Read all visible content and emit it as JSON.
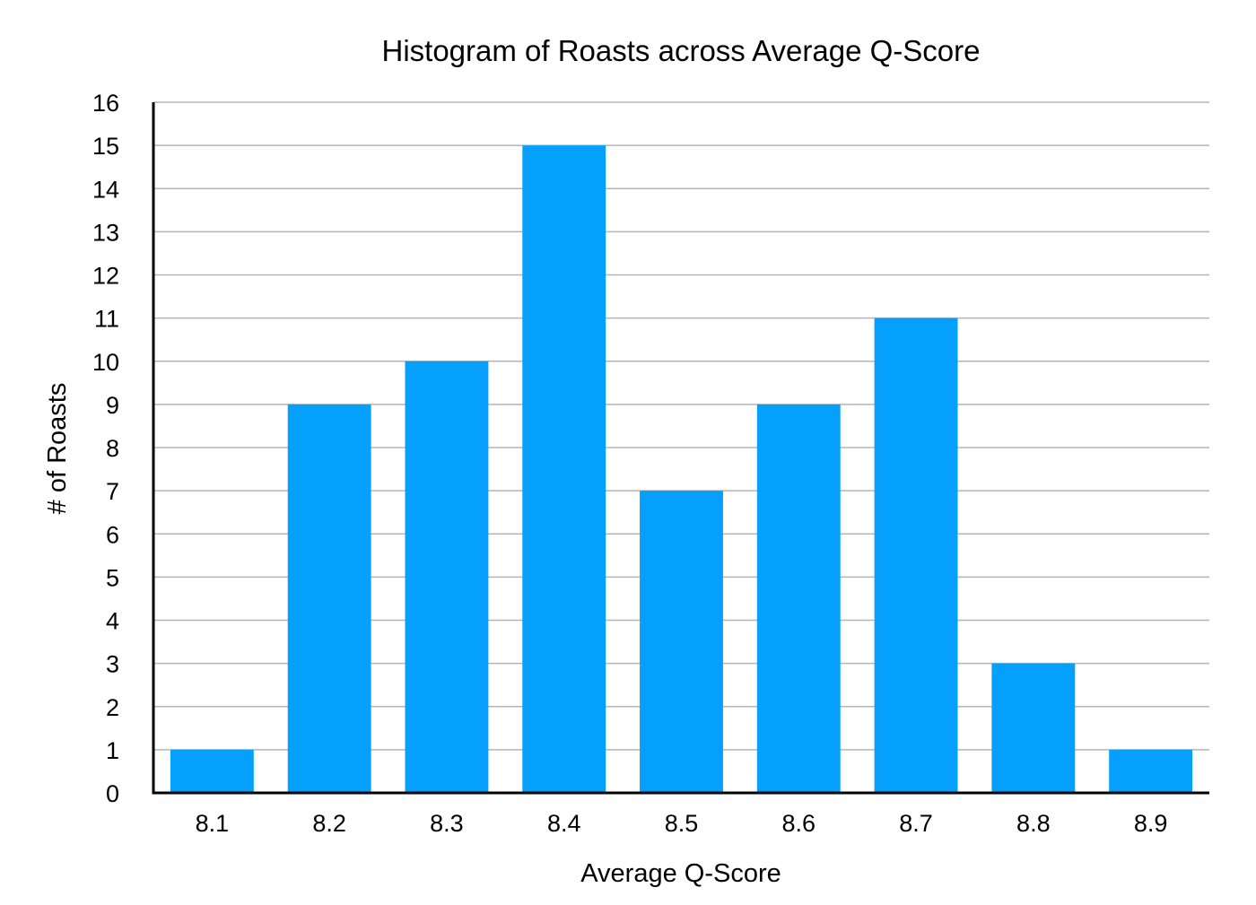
{
  "chart_data": {
    "type": "bar",
    "title": "Histogram of Roasts across Average Q-Score",
    "xlabel": "Average Q-Score",
    "ylabel": "# of Roasts",
    "categories": [
      "8.1",
      "8.2",
      "8.3",
      "8.4",
      "8.5",
      "8.6",
      "8.7",
      "8.8",
      "8.9"
    ],
    "values": [
      1,
      9,
      10,
      15,
      7,
      9,
      11,
      3,
      1
    ],
    "ylim": [
      0,
      16
    ],
    "yticks": [
      "0",
      "1",
      "2",
      "3",
      "4",
      "5",
      "6",
      "7",
      "8",
      "9",
      "10",
      "11",
      "12",
      "13",
      "14",
      "15",
      "16"
    ],
    "grid": true,
    "legend": "none",
    "colors": {
      "bar": "#04a0fc",
      "grid": "#b5b5b5",
      "axis": "#000000",
      "text": "#000000"
    }
  }
}
